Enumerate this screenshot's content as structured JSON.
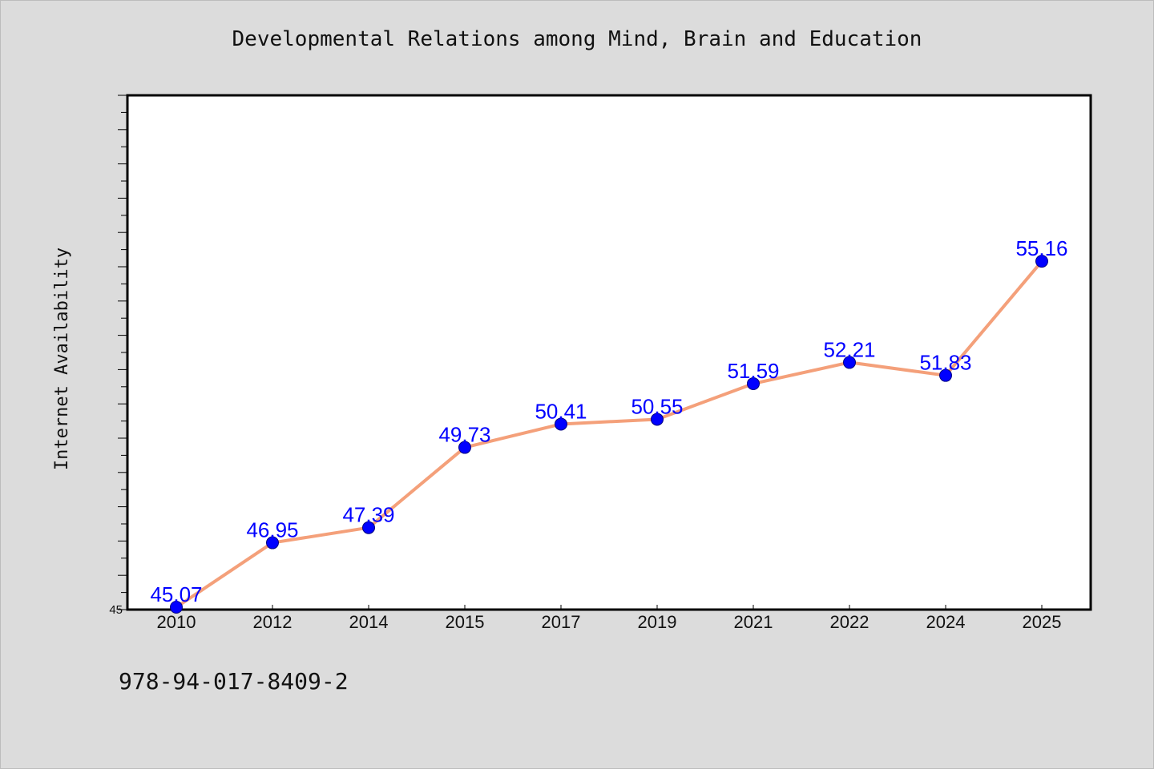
{
  "chart_data": {
    "type": "line",
    "title": "Developmental Relations among Mind, Brain and Education",
    "xlabel": "",
    "ylabel": "Internet Availability",
    "categories": [
      "2010",
      "2012",
      "2014",
      "2015",
      "2017",
      "2019",
      "2021",
      "2022",
      "2024",
      "2025"
    ],
    "series": [
      {
        "values": [
          45.07,
          46.95,
          47.39,
          49.73,
          50.41,
          50.55,
          51.59,
          52.21,
          51.83,
          55.16
        ],
        "data_labels": [
          "45.07",
          "46.95",
          "47.39",
          "49.73",
          "50.41",
          "50.55",
          "51.59",
          "52.21",
          "51.83",
          "55.16"
        ]
      }
    ],
    "ylim": [
      45,
      60
    ],
    "y_tick_labels": [
      "45"
    ],
    "grid": false,
    "colors": {
      "line": "#f4a07a",
      "marker": "#0000ff",
      "data_label": "#0000ff",
      "plot_background": "#ffffff",
      "page_background": "#dcdcdc"
    }
  },
  "footer": "978-94-017-8409-2"
}
